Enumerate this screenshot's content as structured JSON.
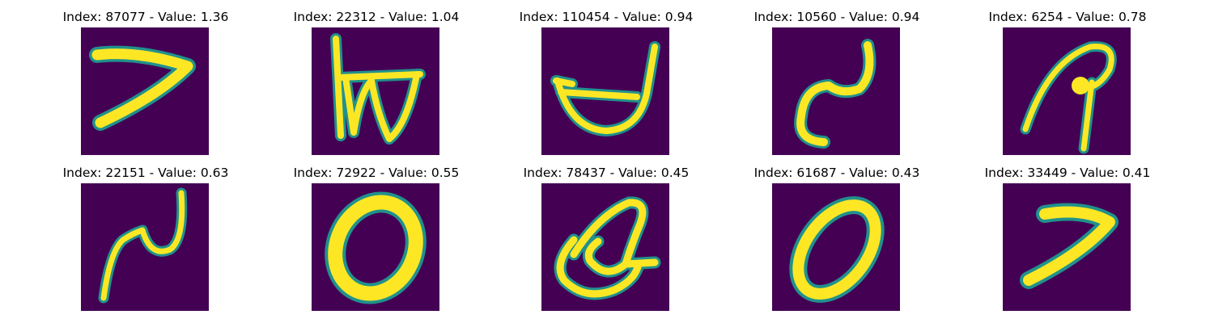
{
  "panels": [
    {
      "title": "Index: 87077 - Value: 1.36",
      "glyph": "seven"
    },
    {
      "title": "Index: 22312 - Value: 1.04",
      "glyph": "letter-b-like"
    },
    {
      "title": "Index: 110454 - Value: 0.94",
      "glyph": "bowl"
    },
    {
      "title": "Index: 10560 - Value: 0.94",
      "glyph": "squiggle-n"
    },
    {
      "title": "Index: 6254 - Value: 0.78",
      "glyph": "a-like"
    },
    {
      "title": "Index: 22151 - Value: 0.63",
      "glyph": "squiggle-n-small"
    },
    {
      "title": "Index: 72922 - Value: 0.55",
      "glyph": "zero"
    },
    {
      "title": "Index: 78437 - Value: 0.45",
      "glyph": "loop-a"
    },
    {
      "title": "Index: 61687 - Value: 0.43",
      "glyph": "zero"
    },
    {
      "title": "Index: 33449 - Value: 0.41",
      "glyph": "seven"
    }
  ],
  "colors": {
    "background": "#440154",
    "stroke": "#fde725",
    "edge": "#21918c"
  }
}
